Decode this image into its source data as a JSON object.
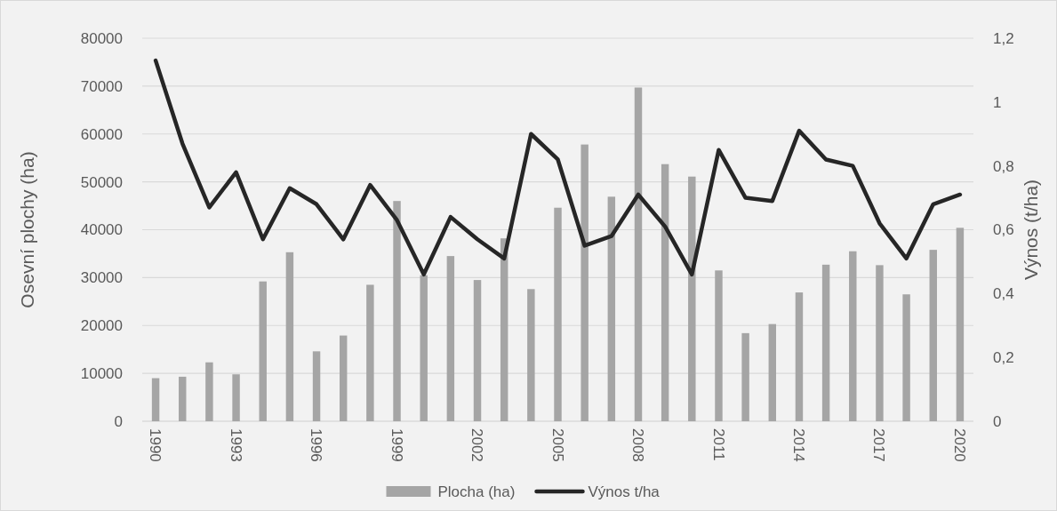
{
  "chart_data": {
    "type": "bar",
    "ylabel": "Osevní plochy (ha)",
    "y2label": "Výnos (t/ha)",
    "categories": [
      "1990",
      null,
      null,
      "1993",
      null,
      null,
      "1996",
      null,
      null,
      "1999",
      null,
      null,
      "2002",
      null,
      null,
      "2005",
      null,
      null,
      "2008",
      null,
      null,
      "2011",
      null,
      null,
      "2014",
      null,
      null,
      "2017",
      null,
      null,
      "2020"
    ],
    "series": [
      {
        "name": "Plocha (ha)",
        "color": "#a5a5a5",
        "values": [
          9000,
          9300,
          12300,
          9800,
          29200,
          35300,
          14600,
          17900,
          28500,
          46000,
          30500,
          34500,
          29500,
          38200,
          27600,
          44600,
          57800,
          46900,
          69700,
          53700,
          51100,
          31500,
          18400,
          20300,
          26900,
          32700,
          35500,
          32600,
          26500,
          35800,
          40400
        ]
      },
      {
        "name": "Výnos t/ha",
        "type": "line",
        "axis": "y2",
        "color": "#262626",
        "values": [
          1.13,
          0.87,
          0.67,
          0.78,
          0.57,
          0.73,
          0.68,
          0.57,
          0.74,
          0.63,
          0.46,
          0.64,
          0.57,
          0.51,
          0.9,
          0.82,
          0.55,
          0.58,
          0.71,
          0.61,
          0.46,
          0.85,
          0.7,
          0.69,
          0.91,
          0.82,
          0.8,
          0.62,
          0.51,
          0.68,
          0.71
        ]
      }
    ],
    "ylim": [
      0,
      80000
    ],
    "yticks": [
      0,
      10000,
      20000,
      30000,
      40000,
      50000,
      60000,
      70000,
      80000
    ],
    "y2lim": [
      0,
      1.2
    ],
    "y2ticks": [
      0,
      {
        "value": 0.2,
        "label": "0,2"
      },
      {
        "value": 0.4,
        "label": "0,4"
      },
      {
        "value": 0.6,
        "label": "0,6"
      },
      {
        "value": 0.8,
        "label": "0,8"
      },
      1,
      {
        "value": 1.2,
        "label": "1,2"
      }
    ],
    "grid": "y",
    "legend": "bottom"
  }
}
